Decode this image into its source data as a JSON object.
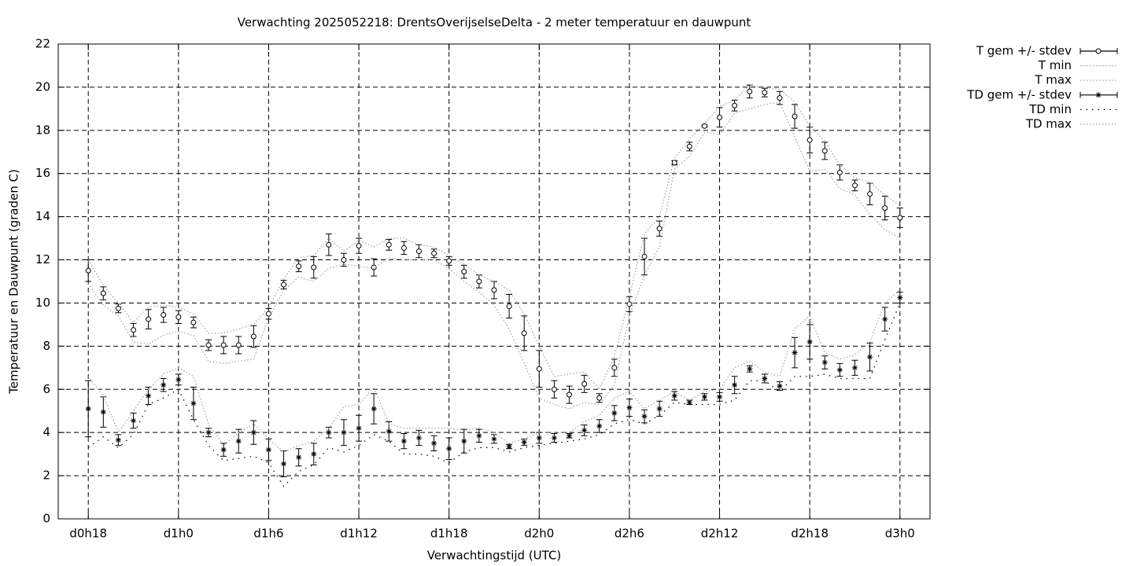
{
  "chart_data": {
    "type": "line",
    "title": "Verwachting 2025052218: DrentsOverijselseDelta - 2 meter temperatuur en dauwpunt",
    "xlabel": "Verwachtingstijd (UTC)",
    "ylabel": "Temperatuur en Dauwpunt (graden C)",
    "x": [
      18,
      19,
      20,
      21,
      22,
      23,
      24,
      25,
      26,
      27,
      28,
      29,
      30,
      31,
      32,
      33,
      34,
      35,
      36,
      37,
      38,
      39,
      40,
      41,
      42,
      43,
      44,
      45,
      46,
      47,
      48,
      49,
      50,
      51,
      52,
      53,
      54,
      55,
      56,
      57,
      58,
      59,
      60,
      61,
      62,
      63,
      64,
      65,
      66,
      67,
      68,
      69,
      70,
      71,
      72
    ],
    "xlim": [
      16,
      74
    ],
    "xticks": [
      {
        "value": 18,
        "label": "d0h18"
      },
      {
        "value": 24,
        "label": "d1h0"
      },
      {
        "value": 30,
        "label": "d1h6"
      },
      {
        "value": 36,
        "label": "d1h12"
      },
      {
        "value": 42,
        "label": "d1h18"
      },
      {
        "value": 48,
        "label": "d2h0"
      },
      {
        "value": 54,
        "label": "d2h6"
      },
      {
        "value": 60,
        "label": "d2h12"
      },
      {
        "value": 66,
        "label": "d2h18"
      },
      {
        "value": 72,
        "label": "d3h0"
      }
    ],
    "ylim": [
      0,
      22
    ],
    "yticks": [
      0,
      2,
      4,
      6,
      8,
      10,
      12,
      14,
      16,
      18,
      20,
      22
    ],
    "grid": true,
    "legend": "top-right-outside",
    "series": [
      {
        "name": "T gem +/- stdev",
        "style": "errorbar",
        "marker": "circle",
        "color": "#000000",
        "values": [
          11.5,
          10.45,
          9.75,
          8.75,
          9.25,
          9.45,
          9.35,
          9.1,
          8.05,
          8.05,
          8.05,
          8.45,
          9.5,
          10.85,
          11.7,
          11.65,
          12.7,
          12.0,
          12.65,
          11.65,
          12.7,
          12.55,
          12.4,
          12.3,
          11.95,
          11.45,
          11.0,
          10.6,
          9.85,
          8.6,
          6.95,
          6.0,
          5.75,
          6.25,
          5.6,
          7.0,
          9.95,
          12.15,
          13.45,
          16.5,
          17.25,
          18.2,
          18.6,
          19.15,
          19.8,
          19.75,
          19.5,
          18.65,
          17.55,
          17.05,
          16.05,
          15.45,
          15.05,
          14.4,
          13.95
        ],
        "errors": [
          0.5,
          0.3,
          0.2,
          0.3,
          0.45,
          0.35,
          0.3,
          0.25,
          0.25,
          0.4,
          0.4,
          0.5,
          0.25,
          0.2,
          0.25,
          0.5,
          0.5,
          0.3,
          0.35,
          0.4,
          0.25,
          0.3,
          0.3,
          0.2,
          0.2,
          0.3,
          0.3,
          0.4,
          0.55,
          0.8,
          0.85,
          0.4,
          0.4,
          0.4,
          0.2,
          0.4,
          0.35,
          0.85,
          0.35,
          0.1,
          0.2,
          0.05,
          0.45,
          0.25,
          0.3,
          0.2,
          0.3,
          0.55,
          0.6,
          0.4,
          0.35,
          0.25,
          0.5,
          0.55,
          0.45
        ]
      },
      {
        "name": "T min",
        "style": "dotted",
        "color": "#a0a0a0",
        "values": [
          10.9,
          9.9,
          9.4,
          8.2,
          8.1,
          8.5,
          8.7,
          8.5,
          7.3,
          7.2,
          7.3,
          7.4,
          9.3,
          10.6,
          11.2,
          11.0,
          11.6,
          11.8,
          11.7,
          11.6,
          12.1,
          12.0,
          12.0,
          12.0,
          11.6,
          11.0,
          10.5,
          9.9,
          8.8,
          7.2,
          5.6,
          5.3,
          5.1,
          5.4,
          5.3,
          6.2,
          9.4,
          11.3,
          12.6,
          16.2,
          16.8,
          17.9,
          17.8,
          18.8,
          19.0,
          19.2,
          19.3,
          17.7,
          16.1,
          16.2,
          15.3,
          15.0,
          14.1,
          13.4,
          13.0
        ]
      },
      {
        "name": "T max",
        "style": "dotted",
        "color": "#a0a0a0",
        "values": [
          12.0,
          10.8,
          10.0,
          9.1,
          9.8,
          9.9,
          9.8,
          9.5,
          8.6,
          8.6,
          8.8,
          9.0,
          9.8,
          11.1,
          12.1,
          12.2,
          13.0,
          12.4,
          12.9,
          12.6,
          13.0,
          13.0,
          12.7,
          12.6,
          12.2,
          11.8,
          11.3,
          11.0,
          10.6,
          9.5,
          8.0,
          6.6,
          6.7,
          6.8,
          6.0,
          7.5,
          10.3,
          13.2,
          14.0,
          16.7,
          17.6,
          18.3,
          19.1,
          19.4,
          20.1,
          20.0,
          19.9,
          19.3,
          18.2,
          17.5,
          16.4,
          15.8,
          15.6,
          15.0,
          14.5
        ]
      },
      {
        "name": "TD gem +/- stdev",
        "style": "errorbar",
        "marker": "star",
        "color": "#000000",
        "values": [
          5.1,
          4.95,
          3.65,
          4.55,
          5.7,
          6.2,
          6.45,
          5.35,
          4.0,
          3.2,
          3.6,
          4.0,
          3.2,
          2.55,
          2.85,
          3.0,
          4.0,
          4.0,
          4.2,
          5.1,
          4.05,
          3.6,
          3.75,
          3.5,
          3.25,
          3.6,
          3.85,
          3.7,
          3.35,
          3.55,
          3.75,
          3.75,
          3.85,
          4.1,
          4.3,
          4.9,
          5.15,
          4.75,
          5.1,
          5.7,
          5.4,
          5.65,
          5.65,
          6.2,
          6.95,
          6.5,
          6.15,
          7.7,
          8.2,
          7.25,
          6.9,
          7.0,
          7.5,
          9.25,
          10.25
        ],
        "errors": [
          1.3,
          0.7,
          0.25,
          0.35,
          0.4,
          0.3,
          0.25,
          0.75,
          0.2,
          0.3,
          0.55,
          0.55,
          0.5,
          0.6,
          0.4,
          0.5,
          0.25,
          0.6,
          0.6,
          0.7,
          0.45,
          0.35,
          0.35,
          0.35,
          0.5,
          0.55,
          0.3,
          0.2,
          0.1,
          0.15,
          0.25,
          0.2,
          0.1,
          0.25,
          0.3,
          0.35,
          0.4,
          0.3,
          0.35,
          0.2,
          0.1,
          0.15,
          0.2,
          0.4,
          0.15,
          0.2,
          0.2,
          0.7,
          0.8,
          0.3,
          0.3,
          0.35,
          0.65,
          0.55,
          0.25
        ]
      },
      {
        "name": "TD min",
        "style": "dotted-wide",
        "color": "#000000",
        "values": [
          3.3,
          3.8,
          3.3,
          3.9,
          5.3,
          5.6,
          6.0,
          4.6,
          3.4,
          2.7,
          2.8,
          2.9,
          2.6,
          1.5,
          2.2,
          2.5,
          3.3,
          3.1,
          3.4,
          3.9,
          3.6,
          3.0,
          3.0,
          2.9,
          2.6,
          3.1,
          3.3,
          3.3,
          3.1,
          3.3,
          3.4,
          3.5,
          3.6,
          3.7,
          3.9,
          4.4,
          4.6,
          4.4,
          4.8,
          5.4,
          5.3,
          5.3,
          5.3,
          5.5,
          6.4,
          6.4,
          5.9,
          6.6,
          6.6,
          6.7,
          6.5,
          6.5,
          6.5,
          8.3,
          10.0
        ]
      },
      {
        "name": "TD max",
        "style": "dotted",
        "color": "#a0a0a0",
        "values": [
          6.6,
          5.7,
          4.0,
          5.0,
          6.0,
          6.7,
          7.0,
          6.6,
          4.4,
          3.4,
          4.0,
          4.4,
          3.7,
          3.1,
          3.4,
          3.6,
          4.2,
          5.2,
          5.3,
          6.1,
          4.4,
          4.2,
          4.2,
          4.2,
          4.2,
          4.1,
          4.2,
          4.0,
          3.5,
          3.7,
          4.0,
          4.0,
          4.0,
          4.5,
          4.8,
          5.6,
          5.9,
          5.1,
          5.5,
          5.9,
          5.5,
          5.9,
          6.0,
          7.0,
          7.3,
          6.8,
          6.6,
          8.8,
          9.4,
          7.7,
          7.4,
          7.6,
          8.2,
          10.0,
          10.6
        ]
      }
    ]
  }
}
